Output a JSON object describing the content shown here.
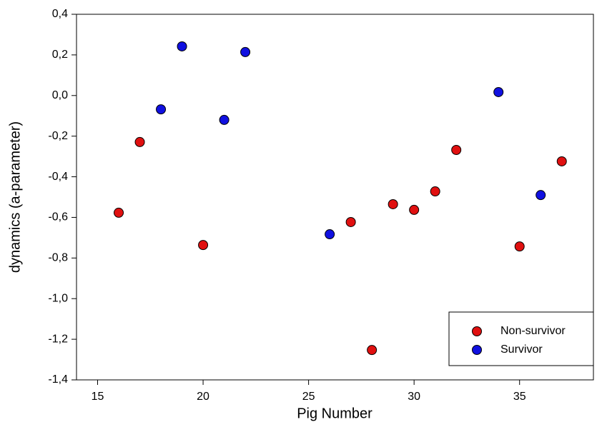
{
  "chart_data": {
    "type": "scatter",
    "x_label": "Pig Number",
    "y_label": "dynamics (a-parameter)",
    "xlim": [
      14,
      38.5
    ],
    "xticks": [
      15,
      20,
      25,
      30,
      35
    ],
    "ylim": [
      -1.4,
      0.4
    ],
    "yticks": [
      {
        "value": -1.4,
        "label": "-1,4"
      },
      {
        "value": -1.2,
        "label": "-1,2"
      },
      {
        "value": -1.0,
        "label": "-1,0"
      },
      {
        "value": -0.8,
        "label": "-0,8"
      },
      {
        "value": -0.6,
        "label": "-0,6"
      },
      {
        "value": -0.4,
        "label": "-0,4"
      },
      {
        "value": -0.2,
        "label": "-0,2"
      },
      {
        "value": 0.0,
        "label": "0,0"
      },
      {
        "value": 0.2,
        "label": "0,2"
      },
      {
        "value": 0.4,
        "label": "0,4"
      }
    ],
    "legend": "lower right",
    "series": [
      {
        "name": "Non-survivor",
        "color": "#e01010",
        "x": [
          16,
          17,
          20,
          27,
          28,
          29,
          30,
          31,
          32,
          35,
          37
        ],
        "values": [
          -0.577,
          -0.229,
          -0.736,
          -0.623,
          -1.253,
          -0.535,
          -0.563,
          -0.472,
          -0.268,
          -0.743,
          -0.324
        ]
      },
      {
        "name": "Survivor",
        "color": "#1010e0",
        "x": [
          18,
          19,
          21,
          22,
          26,
          34,
          36
        ],
        "values": [
          -0.068,
          0.242,
          -0.12,
          0.214,
          -0.683,
          0.017,
          -0.49
        ]
      }
    ]
  }
}
